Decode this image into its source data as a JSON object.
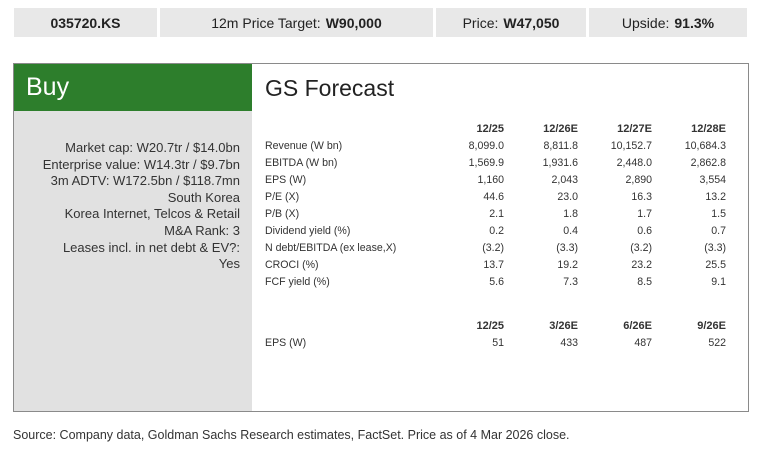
{
  "header": {
    "ticker": "035720.KS",
    "target_label": "12m Price Target:",
    "target_value": "W90,000",
    "price_label": "Price:",
    "price_value": "W47,050",
    "upside_label": "Upside:",
    "upside_value": "91.3%"
  },
  "rating": "Buy",
  "facts": [
    "Market cap: W20.7tr / $14.0bn",
    "Enterprise value: W14.3tr / $9.7bn",
    "3m ADTV: W172.5bn / $118.7mn",
    "South Korea",
    "Korea Internet, Telcos & Retail",
    "M&A Rank: 3",
    "Leases incl. in net debt & EV?:",
    "Yes"
  ],
  "forecast": {
    "title": "GS Forecast",
    "columns": [
      "12/25",
      "12/26E",
      "12/27E",
      "12/28E"
    ],
    "rows": [
      {
        "label": "Revenue (W bn)",
        "values": [
          "8,099.0",
          "8,811.8",
          "10,152.7",
          "10,684.3"
        ]
      },
      {
        "label": "EBITDA (W bn)",
        "values": [
          "1,569.9",
          "1,931.6",
          "2,448.0",
          "2,862.8"
        ]
      },
      {
        "label": "EPS (W)",
        "values": [
          "1,160",
          "2,043",
          "2,890",
          "3,554"
        ]
      },
      {
        "label": "P/E (X)",
        "values": [
          "44.6",
          "23.0",
          "16.3",
          "13.2"
        ]
      },
      {
        "label": "P/B (X)",
        "values": [
          "2.1",
          "1.8",
          "1.7",
          "1.5"
        ]
      },
      {
        "label": "Dividend yield (%)",
        "values": [
          "0.2",
          "0.4",
          "0.6",
          "0.7"
        ]
      },
      {
        "label": "N debt/EBITDA (ex lease,X)",
        "values": [
          "(3.2)",
          "(3.3)",
          "(3.2)",
          "(3.3)"
        ]
      },
      {
        "label": "CROCI (%)",
        "values": [
          "13.7",
          "19.2",
          "23.2",
          "25.5"
        ]
      },
      {
        "label": "FCF yield (%)",
        "values": [
          "5.6",
          "7.3",
          "8.5",
          "9.1"
        ]
      }
    ],
    "quarter_columns": [
      "12/25",
      "3/26E",
      "6/26E",
      "9/26E"
    ],
    "quarter_rows": [
      {
        "label": "EPS (W)",
        "values": [
          "51",
          "433",
          "487",
          "522"
        ]
      }
    ]
  },
  "source": "Source: Company data, Goldman Sachs Research estimates, FactSet. Price as of 4 Mar 2026 close."
}
